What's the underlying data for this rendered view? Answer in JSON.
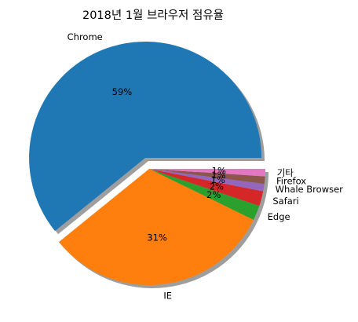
{
  "chart_data": {
    "type": "pie",
    "title": "2018년 1월 브라우저 점유율",
    "categories": [
      "Chrome",
      "IE",
      "Edge",
      "Safari",
      "Whale Browser",
      "Firefox",
      "기타"
    ],
    "values": [
      59,
      31,
      2,
      2,
      1,
      1,
      1
    ],
    "value_labels": [
      "59%",
      "31%",
      "2%",
      "2%",
      "1%",
      "1%",
      "1%"
    ],
    "colors": [
      "#1f77b4",
      "#ff7f0e",
      "#2ca02c",
      "#d62728",
      "#9467bd",
      "#8c564b",
      "#e377c2"
    ],
    "explode": [
      0.1,
      0,
      0,
      0,
      0,
      0,
      0
    ],
    "shadow": true,
    "start_angle": 0,
    "direction": "counterclockwise"
  }
}
